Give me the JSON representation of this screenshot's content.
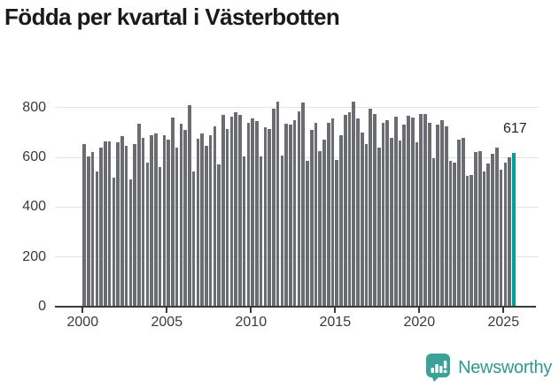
{
  "title": "Födda per kvartal i Västerbotten",
  "chart_data": {
    "type": "bar",
    "title": "Födda per kvartal i Västerbotten",
    "frequency": "quarterly",
    "start_period": "2000Q1",
    "end_period": "2025Q3",
    "xlabel": "",
    "ylabel": "",
    "ylim": [
      0,
      850
    ],
    "grid": true,
    "y_tick_values": [
      0,
      200,
      400,
      600,
      800
    ],
    "y_tick_labels": [
      "0",
      "200",
      "400",
      "600",
      "800"
    ],
    "x_tick_labels": [
      "2000",
      "2005",
      "2010",
      "2015",
      "2020",
      "2025"
    ],
    "bar_color": "#6b6b72",
    "highlight_color": "#00a099",
    "highlight_index": 102,
    "highlight_label": "617",
    "values": [
      655,
      605,
      620,
      545,
      640,
      665,
      665,
      520,
      660,
      685,
      645,
      512,
      655,
      735,
      680,
      580,
      690,
      695,
      560,
      690,
      670,
      760,
      640,
      735,
      710,
      810,
      545,
      675,
      695,
      645,
      690,
      725,
      570,
      770,
      715,
      765,
      780,
      770,
      605,
      740,
      755,
      745,
      605,
      720,
      715,
      795,
      825,
      608,
      735,
      730,
      750,
      785,
      820,
      585,
      710,
      740,
      625,
      670,
      740,
      755,
      590,
      690,
      770,
      780,
      825,
      755,
      700,
      655,
      795,
      775,
      640,
      740,
      750,
      680,
      765,
      667,
      730,
      768,
      759,
      660,
      775,
      775,
      740,
      595,
      730,
      750,
      725,
      585,
      580,
      670,
      680,
      525,
      530,
      620,
      625,
      545,
      575,
      615,
      640,
      550,
      580,
      600,
      617
    ]
  },
  "branding": {
    "logo_text": "Newsworthy",
    "logo_color": "#2f998e",
    "logo_icon_color": "#3aa297"
  }
}
